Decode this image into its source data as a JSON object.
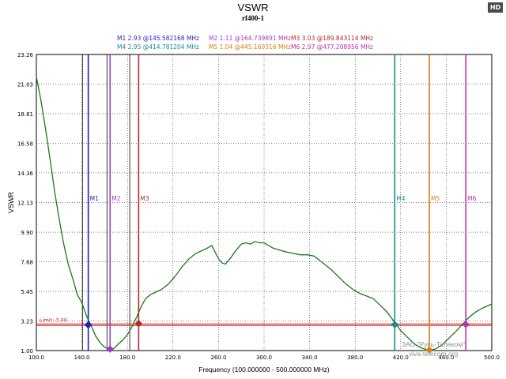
{
  "badge": "HD",
  "watermark": {
    "line1": "ЗАО \"Русь-Телеком\"",
    "line2": "viva-telecom.org"
  },
  "chart_data": {
    "type": "line",
    "title": "VSWR",
    "subtitle": "rf400-1",
    "xlabel": "Frequency (100.000000 - 500.000000 MHz)",
    "ylabel": "VSWR",
    "xlim": [
      100,
      500
    ],
    "ylim": [
      1.0,
      23.26
    ],
    "xticks": [
      100,
      140,
      180,
      220,
      260,
      300,
      340,
      380,
      420,
      460,
      500
    ],
    "xtick_labels": [
      "100.0",
      "140.0",
      "180.0",
      "220.0",
      "260.0",
      "300.0",
      "340.0",
      "380.0",
      "420.0",
      "460.0",
      "500.0"
    ],
    "yticks": [
      1.0,
      3.23,
      5.45,
      7.68,
      9.9,
      12.13,
      14.36,
      16.58,
      18.81,
      21.03,
      23.26
    ],
    "ytick_labels": [
      "1.00",
      "3.23",
      "5.45",
      "7.68",
      "9.90",
      "12.13",
      "14.36",
      "16.58",
      "18.81",
      "21.03",
      "23.26"
    ],
    "limit": {
      "value": 3.0,
      "label": "Limit: 3.00"
    },
    "extra_vlines": [
      140.5,
      162,
      182
    ],
    "series": [
      {
        "name": "rf400-1",
        "x": [
          100,
          104,
          108,
          112,
          116,
          120,
          124,
          128,
          132,
          136,
          140,
          144,
          148,
          152,
          156,
          160,
          164,
          168,
          172,
          176,
          180,
          184,
          188,
          192,
          196,
          200,
          205,
          210,
          216,
          222,
          228,
          234,
          240,
          245,
          250,
          254,
          257,
          260,
          263,
          266,
          270,
          275,
          280,
          284,
          288,
          292,
          296,
          300,
          304,
          308,
          312,
          316,
          320,
          326,
          332,
          338,
          344,
          350,
          356,
          360,
          366,
          372,
          378,
          384,
          390,
          396,
          402,
          408,
          414,
          420,
          426,
          432,
          438,
          444,
          450,
          456,
          462,
          468,
          474,
          480,
          486,
          492,
          500
        ],
        "y": [
          21.6,
          19.8,
          17.7,
          15.4,
          13.0,
          10.9,
          9.0,
          7.5,
          6.4,
          5.2,
          4.6,
          3.6,
          2.9,
          2.1,
          1.6,
          1.25,
          1.11,
          1.15,
          1.5,
          1.8,
          2.2,
          2.8,
          3.5,
          4.3,
          4.9,
          5.2,
          5.4,
          5.6,
          6.0,
          6.6,
          7.3,
          7.9,
          8.3,
          8.5,
          8.7,
          8.9,
          8.4,
          7.9,
          7.6,
          7.5,
          7.9,
          8.5,
          9.0,
          9.1,
          9.0,
          9.2,
          9.1,
          9.1,
          8.9,
          8.7,
          8.6,
          8.5,
          8.4,
          8.3,
          8.2,
          8.2,
          8.1,
          7.7,
          7.3,
          7.0,
          6.5,
          6.0,
          5.6,
          5.3,
          5.1,
          4.9,
          4.4,
          3.9,
          3.2,
          2.5,
          2.0,
          1.5,
          1.2,
          1.05,
          1.1,
          1.4,
          1.9,
          2.4,
          2.95,
          3.5,
          3.9,
          4.2,
          4.5
        ]
      }
    ],
    "markers": [
      {
        "id": "M1",
        "vswr": "2.93",
        "freq": "145.582168 MHz",
        "x": 145.58,
        "y": 2.93,
        "color": "#1f1fbf"
      },
      {
        "id": "M2",
        "vswr": "1.11",
        "freq": "164.739891 MHz",
        "x": 164.74,
        "y": 1.11,
        "color": "#9c3fc0"
      },
      {
        "id": "M3",
        "vswr": "3.03",
        "freq": "189.843114 MHz",
        "x": 189.84,
        "y": 3.03,
        "color": "#b02a2a"
      },
      {
        "id": "M4",
        "vswr": "2.95",
        "freq": "414.781204 MHz",
        "x": 414.78,
        "y": 2.95,
        "color": "#1a8a8a"
      },
      {
        "id": "M5",
        "vswr": "1.04",
        "freq": "445.169316 MHz",
        "x": 445.17,
        "y": 1.04,
        "color": "#e07b10"
      },
      {
        "id": "M6",
        "vswr": "2.97",
        "freq": "477.208956 MHz",
        "x": 477.21,
        "y": 2.97,
        "color": "#c030b0"
      }
    ],
    "colors": {
      "trace": "#1a7a1a",
      "limit": "#d41c1c",
      "grid": "#000000"
    }
  }
}
